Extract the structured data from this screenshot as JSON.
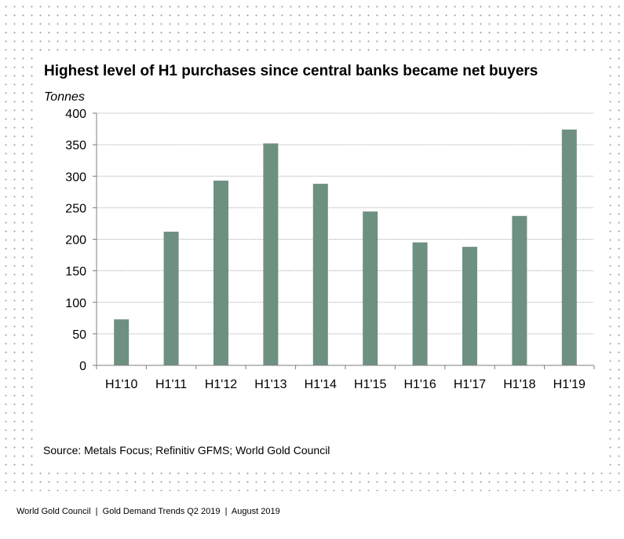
{
  "chart_data": {
    "type": "bar",
    "title": "Highest level of H1 purchases since central banks became net buyers",
    "ylabel": "Tonnes",
    "xlabel": "",
    "categories": [
      "H1'10",
      "H1'11",
      "H1'12",
      "H1'13",
      "H1'14",
      "H1'15",
      "H1'16",
      "H1'17",
      "H1'18",
      "H1'19"
    ],
    "values": [
      73,
      212,
      293,
      352,
      288,
      244,
      195,
      188,
      237,
      374
    ],
    "ylim": [
      0,
      400
    ],
    "yticks": [
      0,
      50,
      100,
      150,
      200,
      250,
      300,
      350,
      400
    ],
    "grid": true,
    "legend": "none",
    "bar_color": "#6e9080"
  },
  "source": "Source: Metals Focus; Refinitiv GFMS; World Gold Council",
  "footer": "World Gold Council  |  Gold Demand Trends Q2 2019  |  August 2019"
}
